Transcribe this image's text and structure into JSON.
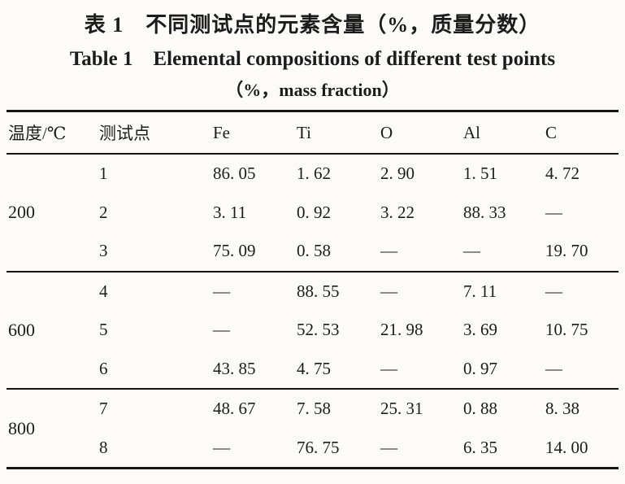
{
  "title": {
    "zh": "表 1　不同测试点的元素含量（%，质量分数）",
    "en": "Table 1　Elemental compositions of different test points",
    "unit": "（%，mass fraction）"
  },
  "table": {
    "columns": [
      "温度/℃",
      "测试点",
      "Fe",
      "Ti",
      "O",
      "Al",
      "C"
    ],
    "groups": [
      {
        "temperature": "200",
        "rows": [
          {
            "cells": [
              "1",
              "86. 05",
              "1. 62",
              "2. 90",
              "1. 51",
              "4. 72"
            ]
          },
          {
            "cells": [
              "2",
              "3. 11",
              "0. 92",
              "3. 22",
              "88. 33",
              "—"
            ]
          },
          {
            "cells": [
              "3",
              "75. 09",
              "0. 58",
              "—",
              "—",
              "19. 70"
            ]
          }
        ]
      },
      {
        "temperature": "600",
        "rows": [
          {
            "cells": [
              "4",
              "—",
              "88. 55",
              "—",
              "7. 11",
              "—"
            ]
          },
          {
            "cells": [
              "5",
              "—",
              "52. 53",
              "21. 98",
              "3. 69",
              "10. 75"
            ]
          },
          {
            "cells": [
              "6",
              "43. 85",
              "4. 75",
              "—",
              "0. 97",
              "—"
            ]
          }
        ]
      },
      {
        "temperature": "800",
        "rows": [
          {
            "cells": [
              "7",
              "48. 67",
              "7. 58",
              "25. 31",
              "0. 88",
              "8. 38"
            ]
          },
          {
            "cells": [
              "8",
              "—",
              "76. 75",
              "—",
              "6. 35",
              "14. 00"
            ]
          }
        ]
      }
    ]
  }
}
